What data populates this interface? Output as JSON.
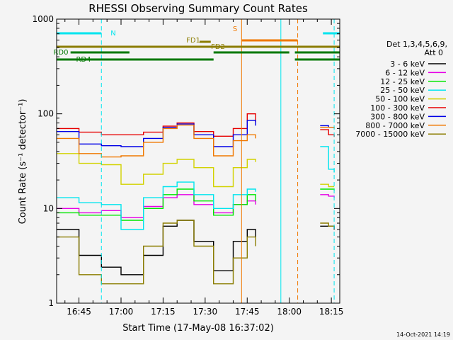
{
  "chart_data": {
    "type": "line",
    "title": "RHESSI Observing Summary Count Rates",
    "xlabel": "Start Time (17-May-08 16:37:02)",
    "ylabel": "Count Rate (s⁻¹ detector⁻¹)",
    "y_scale": "log",
    "ylim": [
      1,
      1000
    ],
    "xlim": [
      "16:37:02",
      "18:18:00"
    ],
    "y_ticks": [
      "1",
      "10",
      "100",
      "1000"
    ],
    "x_ticks": [
      "16:45",
      "17:00",
      "17:15",
      "17:30",
      "17:45",
      "18:00",
      "18:15"
    ],
    "footer_date": "14-Oct-2021 14:19",
    "legend_header": [
      "Det 1,3,4,5,6,9,",
      "Att 0"
    ],
    "flag_labels": [
      "N",
      "S",
      "FD1",
      "FD2",
      "RD0",
      "RD4"
    ],
    "flags": [
      {
        "label": "N",
        "color": "#00e5ee",
        "segments": [
          [
            "16:37",
            "16:53"
          ],
          [
            "18:12",
            "18:18"
          ]
        ]
      },
      {
        "label": "S",
        "color": "#f07800",
        "segments": [
          [
            "17:43",
            "18:03"
          ]
        ]
      },
      {
        "label": "FD1",
        "color": "#8b7d00",
        "segments": [
          [
            "17:28",
            "17:32"
          ]
        ]
      },
      {
        "label": "FD2",
        "color": "#8b7d00",
        "segments": [
          [
            "16:37",
            "18:18"
          ]
        ]
      },
      {
        "label": "RD0",
        "color": "#007800",
        "segments": [
          [
            "16:42",
            "17:03"
          ],
          [
            "17:33",
            "18:00"
          ],
          [
            "18:02",
            "18:18"
          ]
        ]
      },
      {
        "label": "RD4",
        "color": "#007800",
        "segments": [
          [
            "16:37",
            "17:33"
          ],
          [
            "18:02",
            "18:18"
          ]
        ]
      }
    ],
    "markers": [
      {
        "time": "16:53",
        "color": "#00e5ee",
        "style": "dashed"
      },
      {
        "time": "17:43",
        "color": "#f07800",
        "style": "solid"
      },
      {
        "time": "17:57",
        "color": "#00e5ee",
        "style": "solid"
      },
      {
        "time": "18:03",
        "color": "#f07800",
        "style": "dashed"
      },
      {
        "time": "18:16",
        "color": "#00e5ee",
        "style": "dashed"
      }
    ],
    "gaps": [
      [
        "17:48",
        "18:11"
      ]
    ],
    "series": [
      {
        "name": "3 - 6 keV",
        "color": "#000000",
        "x": [
          "16:37",
          "16:45",
          "16:53",
          "17:00",
          "17:08",
          "17:15",
          "17:20",
          "17:26",
          "17:33",
          "17:40",
          "17:45",
          "17:48",
          "18:11",
          "18:14",
          "18:16"
        ],
        "values": [
          6,
          3.2,
          2.4,
          2,
          3.2,
          6.5,
          7.5,
          4.5,
          2.2,
          4.5,
          6,
          5,
          6.5,
          6.5,
          6
        ]
      },
      {
        "name": "6 - 12 keV",
        "color": "#e600e6",
        "x": [
          "16:37",
          "16:45",
          "16:53",
          "17:00",
          "17:08",
          "17:15",
          "17:20",
          "17:26",
          "17:33",
          "17:40",
          "17:45",
          "17:48",
          "18:11",
          "18:14",
          "18:16"
        ],
        "values": [
          10,
          9,
          9.5,
          8,
          10.5,
          13,
          14,
          11,
          9,
          11,
          12,
          11,
          14,
          13.5,
          13
        ]
      },
      {
        "name": "12 - 25 keV",
        "color": "#00e600",
        "x": [
          "16:37",
          "16:45",
          "16:53",
          "17:00",
          "17:08",
          "17:15",
          "17:20",
          "17:26",
          "17:33",
          "17:40",
          "17:45",
          "17:48",
          "18:11",
          "18:14",
          "18:16"
        ],
        "values": [
          9,
          8.5,
          8.5,
          7.5,
          10,
          14,
          16,
          12,
          8.5,
          11,
          14,
          12,
          16,
          16,
          15.5
        ]
      },
      {
        "name": "25 - 50 keV",
        "color": "#00e5ee",
        "x": [
          "16:37",
          "16:45",
          "16:53",
          "17:00",
          "17:08",
          "17:15",
          "17:20",
          "17:26",
          "17:33",
          "17:40",
          "17:45",
          "17:48",
          "18:11",
          "18:14",
          "18:16"
        ],
        "values": [
          13,
          11.5,
          11,
          6,
          13,
          17,
          19,
          14,
          10,
          14,
          16,
          15,
          45,
          26,
          24
        ]
      },
      {
        "name": "50 - 100 keV",
        "color": "#d2d200",
        "x": [
          "16:37",
          "16:45",
          "16:53",
          "17:00",
          "17:08",
          "17:15",
          "17:20",
          "17:26",
          "17:33",
          "17:40",
          "17:45",
          "17:48",
          "18:11",
          "18:14",
          "18:16"
        ],
        "values": [
          38,
          30,
          29,
          18,
          23,
          30,
          33,
          27,
          17,
          27,
          33,
          31,
          18,
          17,
          17
        ]
      },
      {
        "name": "100 - 300 keV",
        "color": "#e60000",
        "x": [
          "16:37",
          "16:45",
          "16:53",
          "17:00",
          "17:08",
          "17:15",
          "17:20",
          "17:26",
          "17:33",
          "17:40",
          "17:45",
          "17:48",
          "18:11",
          "18:14",
          "18:16"
        ],
        "values": [
          70,
          64,
          60,
          60,
          64,
          74,
          80,
          65,
          58,
          70,
          100,
          82,
          68,
          60,
          57
        ]
      },
      {
        "name": "300 - 800 keV",
        "color": "#0000e6",
        "x": [
          "16:37",
          "16:45",
          "16:53",
          "17:00",
          "17:08",
          "17:15",
          "17:20",
          "17:26",
          "17:33",
          "17:40",
          "17:45",
          "17:48",
          "18:11",
          "18:14",
          "18:16"
        ],
        "values": [
          65,
          48,
          46,
          45,
          55,
          72,
          78,
          60,
          45,
          60,
          85,
          75,
          75,
          72,
          72
        ]
      },
      {
        "name": "800 - 7000 keV",
        "color": "#f07800",
        "x": [
          "16:37",
          "16:45",
          "16:53",
          "17:00",
          "17:08",
          "17:15",
          "17:20",
          "17:26",
          "17:33",
          "17:40",
          "17:45",
          "17:48",
          "18:11",
          "18:14",
          "18:16"
        ],
        "values": [
          55,
          38,
          35,
          36,
          50,
          70,
          76,
          55,
          36,
          52,
          60,
          55,
          72,
          72,
          70
        ]
      },
      {
        "name": "7000 - 15000 keV",
        "color": "#8b7d00",
        "x": [
          "16:37",
          "16:45",
          "16:53",
          "17:00",
          "17:08",
          "17:15",
          "17:20",
          "17:26",
          "17:33",
          "17:40",
          "17:45",
          "17:48",
          "18:11",
          "18:14",
          "18:16"
        ],
        "values": [
          5,
          2,
          1.6,
          1.6,
          4,
          7,
          7.5,
          4,
          1.6,
          3,
          5,
          4,
          7,
          6.5,
          6.5
        ]
      }
    ]
  }
}
